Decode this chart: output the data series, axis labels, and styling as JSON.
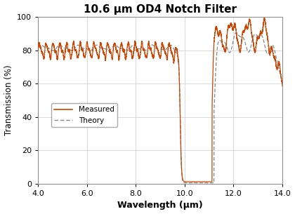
{
  "title": "10.6 μm OD4 Notch Filter",
  "xlabel": "Wavelength (μm)",
  "ylabel": "Transmission (%)",
  "xlim": [
    4.0,
    14.0
  ],
  "ylim": [
    0,
    100
  ],
  "xticks": [
    4.0,
    6.0,
    8.0,
    10.0,
    12.0,
    14.0
  ],
  "yticks": [
    0,
    20,
    40,
    60,
    80,
    100
  ],
  "measured_color": "#CC4400",
  "theory_color": "#888888",
  "background_color": "#ffffff",
  "grid_color": "#cccccc"
}
